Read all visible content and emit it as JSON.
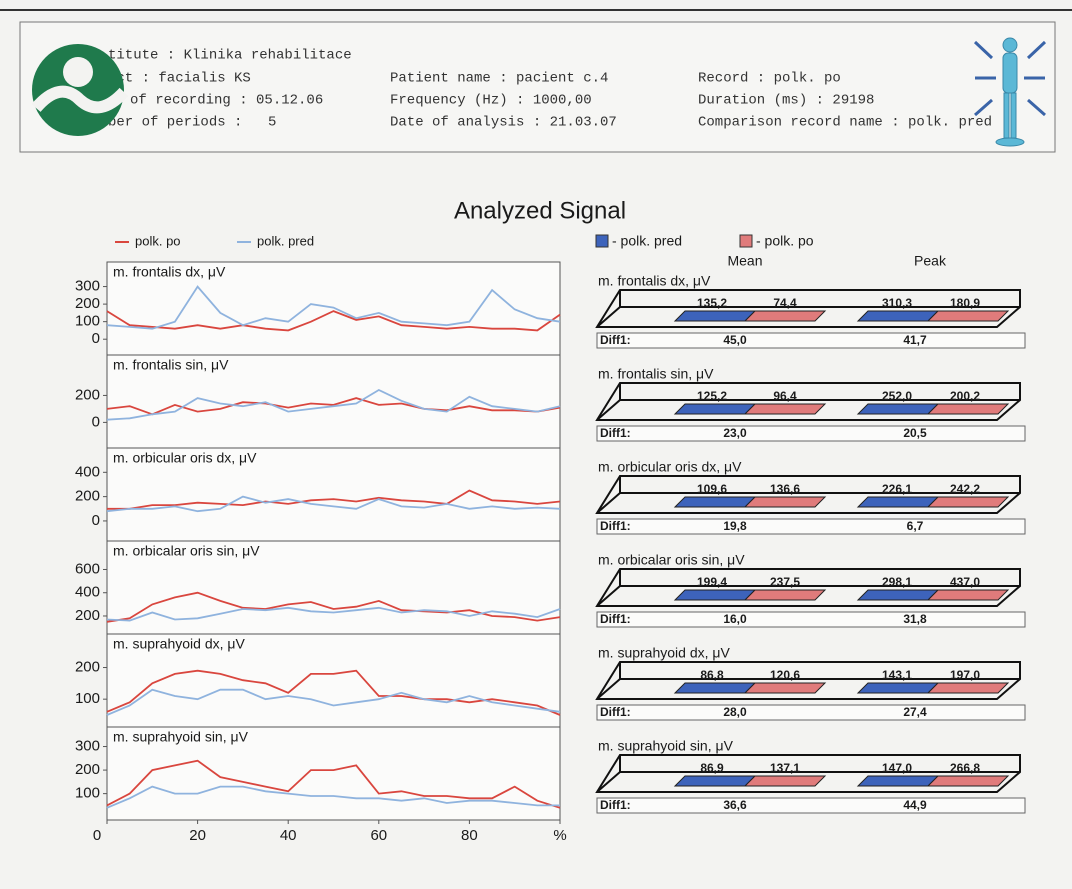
{
  "header": {
    "institute": "titute : Klinika rehabilitace",
    "subject": "ect : facialis KS",
    "date_of_recording": "of recording : 05.12.06",
    "periods_label": "ber of periods :",
    "periods": "5",
    "patient": "Patient name : pacient c.4",
    "frequency": "Frequency (Hz) : 1000,00",
    "date_of_analysis": "Date of analysis : 21.03.07",
    "record": "Record : polk. po",
    "duration": "Duration (ms) : 29198",
    "comparison": "Comparison record name : polk. pred"
  },
  "title": "Analyzed Signal",
  "signal_chart": {
    "type": "line",
    "x": [
      0,
      5,
      10,
      15,
      20,
      25,
      30,
      35,
      40,
      45,
      50,
      55,
      60,
      65,
      70,
      75,
      80,
      85,
      90,
      95,
      100
    ],
    "xlim": [
      0,
      100
    ],
    "xticks": [
      0,
      20,
      40,
      60,
      80,
      {
        "value": 100,
        "label": "%"
      }
    ],
    "series": [
      {
        "name": "polk. po",
        "color": "#d9463e"
      },
      {
        "name": "polk. pred",
        "color": "#8fb3de"
      }
    ],
    "panels": [
      {
        "title": "m. frontalis dx, μV",
        "ylim": [
          -90,
          440
        ],
        "yticks": [
          0,
          100,
          200,
          300
        ],
        "values": [
          [
            160,
            80,
            70,
            60,
            80,
            60,
            80,
            60,
            50,
            100,
            160,
            110,
            130,
            80,
            70,
            60,
            70,
            60,
            60,
            50,
            140
          ],
          [
            80,
            70,
            60,
            100,
            300,
            150,
            80,
            120,
            100,
            200,
            180,
            120,
            150,
            100,
            90,
            80,
            100,
            280,
            170,
            120,
            100
          ]
        ]
      },
      {
        "title": "m. frontalis sin, μV",
        "ylim": [
          -190,
          500
        ],
        "yticks": [
          0,
          200
        ],
        "values": [
          [
            100,
            120,
            60,
            130,
            80,
            100,
            150,
            140,
            110,
            140,
            130,
            180,
            130,
            140,
            100,
            90,
            120,
            90,
            90,
            80,
            110
          ],
          [
            20,
            30,
            60,
            80,
            180,
            140,
            120,
            150,
            80,
            100,
            120,
            140,
            240,
            160,
            100,
            80,
            190,
            120,
            100,
            80,
            120
          ]
        ]
      },
      {
        "title": "m. orbicular oris dx, μV",
        "ylim": [
          -165,
          600
        ],
        "yticks": [
          0,
          200,
          400
        ],
        "values": [
          [
            100,
            100,
            130,
            130,
            150,
            140,
            130,
            160,
            140,
            170,
            180,
            160,
            190,
            170,
            160,
            140,
            250,
            170,
            160,
            140,
            160
          ],
          [
            80,
            100,
            100,
            120,
            80,
            100,
            200,
            150,
            180,
            140,
            120,
            100,
            180,
            120,
            110,
            140,
            100,
            120,
            100,
            110,
            100
          ]
        ]
      },
      {
        "title": "m. orbicalar oris sin, μV",
        "ylim": [
          45,
          845
        ],
        "yticks": [
          200,
          400,
          600
        ],
        "values": [
          [
            150,
            180,
            300,
            360,
            400,
            330,
            270,
            260,
            300,
            320,
            260,
            280,
            330,
            250,
            240,
            230,
            250,
            200,
            190,
            160,
            190
          ],
          [
            170,
            160,
            230,
            170,
            180,
            220,
            260,
            250,
            270,
            240,
            230,
            250,
            270,
            230,
            250,
            240,
            200,
            240,
            220,
            190,
            260
          ]
        ]
      },
      {
        "title": "m. suprahyoid dx, μV",
        "ylim": [
          12,
          306
        ],
        "yticks": [
          100,
          200
        ],
        "values": [
          [
            60,
            90,
            150,
            180,
            190,
            180,
            160,
            150,
            120,
            180,
            180,
            190,
            110,
            110,
            100,
            100,
            90,
            100,
            90,
            80,
            50
          ],
          [
            50,
            80,
            130,
            110,
            100,
            130,
            130,
            100,
            110,
            100,
            80,
            90,
            100,
            120,
            100,
            90,
            110,
            90,
            80,
            70,
            60
          ]
        ]
      },
      {
        "title": "m. suprahyoid sin, μV",
        "ylim": [
          -12,
          383
        ],
        "yticks": [
          100,
          200,
          300
        ],
        "values": [
          [
            50,
            100,
            200,
            220,
            240,
            170,
            150,
            130,
            110,
            200,
            200,
            220,
            100,
            110,
            90,
            90,
            80,
            80,
            130,
            70,
            40
          ],
          [
            40,
            80,
            130,
            100,
            100,
            130,
            130,
            110,
            100,
            90,
            90,
            80,
            80,
            70,
            80,
            60,
            70,
            70,
            60,
            50,
            50
          ]
        ]
      }
    ]
  },
  "comparison": {
    "legend": [
      {
        "name": "- polk. pred",
        "color": "#3d63bb"
      },
      {
        "name": "- polk. po",
        "color": "#e07b7b"
      }
    ],
    "columns": [
      "Mean",
      "Peak"
    ],
    "diff_label": "Diff1:",
    "rows": [
      {
        "mean": [
          "135,2",
          "74,4"
        ],
        "peak": [
          "310,3",
          "180,9"
        ],
        "diff": [
          "45,0",
          "41,7"
        ]
      },
      {
        "mean": [
          "125,2",
          "96,4"
        ],
        "peak": [
          "252,0",
          "200,2"
        ],
        "diff": [
          "23,0",
          "20,5"
        ]
      },
      {
        "mean": [
          "109,6",
          "136,6"
        ],
        "peak": [
          "226,1",
          "242,2"
        ],
        "diff": [
          "19,8",
          "6,7"
        ]
      },
      {
        "mean": [
          "199,4",
          "237,5"
        ],
        "peak": [
          "298,1",
          "437,0"
        ],
        "diff": [
          "16,0",
          "31,8"
        ]
      },
      {
        "mean": [
          "86,8",
          "120,6"
        ],
        "peak": [
          "143,1",
          "197,0"
        ],
        "diff": [
          "28,0",
          "27,4"
        ]
      },
      {
        "mean": [
          "86,9",
          "137,1"
        ],
        "peak": [
          "147,0",
          "266,8"
        ],
        "diff": [
          "36,6",
          "44,9"
        ]
      }
    ]
  }
}
